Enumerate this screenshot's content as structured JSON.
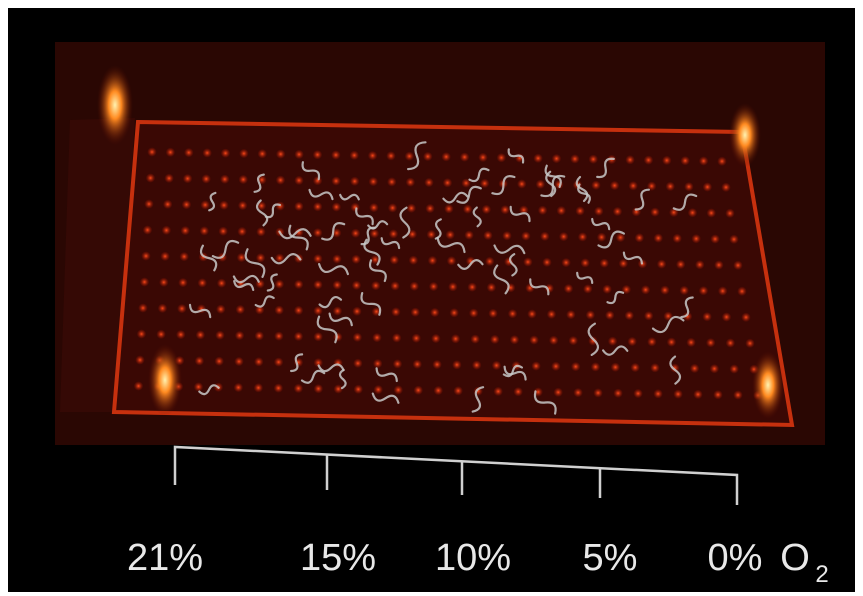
{
  "scale": {
    "labels": [
      "21%",
      "15%",
      "10%",
      "5%",
      "0%"
    ],
    "unit": "O",
    "unit_subscript": "2"
  }
}
